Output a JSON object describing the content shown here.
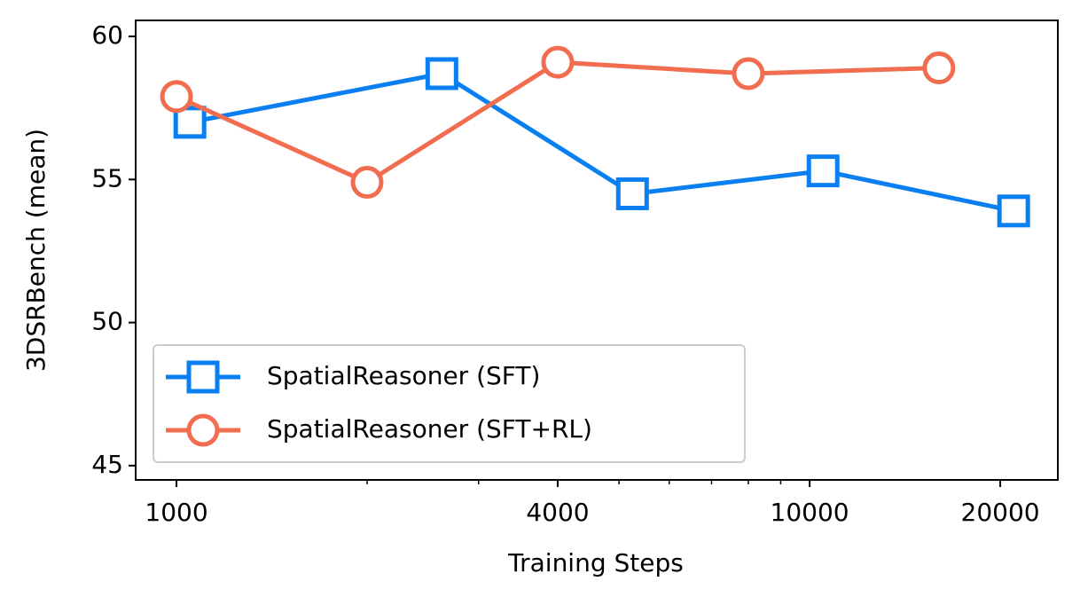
{
  "chart_data": {
    "type": "line",
    "x_label": "Training Steps",
    "y_label": "3DSRBench (mean)",
    "x_scale": "log",
    "xlim": [
      862,
      24660
    ],
    "xticks": [
      1000,
      4000,
      10000,
      20000
    ],
    "xminorticks": [
      2000,
      3000,
      5000,
      6000,
      7000,
      8000,
      9000
    ],
    "ylim": [
      44.5,
      60.56
    ],
    "yticks": [
      45,
      50,
      55,
      60
    ],
    "legend": "lower left",
    "series": [
      {
        "name": "SpatialReasoner (SFT)",
        "color": "#0a7ff2",
        "marker": "square",
        "x": [
          1050,
          2625,
          5250,
          10500,
          21000
        ],
        "values": [
          57.0,
          58.7,
          54.5,
          55.3,
          53.9
        ]
      },
      {
        "name": "SpatialReasoner (SFT+RL)",
        "color": "#f26c4f",
        "marker": "circle",
        "x": [
          1000,
          2000,
          4000,
          8000,
          16000
        ],
        "values": [
          57.9,
          54.9,
          59.1,
          58.7,
          58.9
        ]
      }
    ]
  }
}
